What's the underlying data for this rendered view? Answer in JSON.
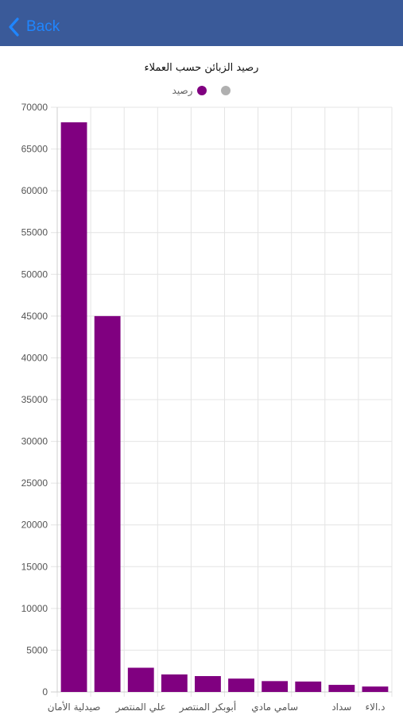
{
  "nav": {
    "back_label": "Back",
    "bar_color": "#3a5a99",
    "link_color": "#1f86ff"
  },
  "chart_data": {
    "type": "bar",
    "title": "رصيد الزبائن حسب العملاء",
    "legend": [
      {
        "label": "رصيد",
        "color": "#800080"
      },
      {
        "label": "",
        "color": "#b0b0b0"
      }
    ],
    "categories": [
      "صيدلية الأمان",
      "",
      "علي المنتصر",
      "",
      "أبوبكر المنتصر",
      "",
      "سامي مادي",
      "",
      "سداد",
      "د.الاء"
    ],
    "series": [
      {
        "name": "رصيد",
        "color": "#800080",
        "values": [
          68200,
          45000,
          2900,
          2100,
          1900,
          1600,
          1300,
          1250,
          850,
          650
        ]
      }
    ],
    "ylim": [
      0,
      70000
    ],
    "yticks": [
      0,
      5000,
      10000,
      15000,
      20000,
      25000,
      30000,
      35000,
      40000,
      45000,
      50000,
      55000,
      60000,
      65000,
      70000
    ],
    "grid": true,
    "legend_position": "top-center"
  }
}
